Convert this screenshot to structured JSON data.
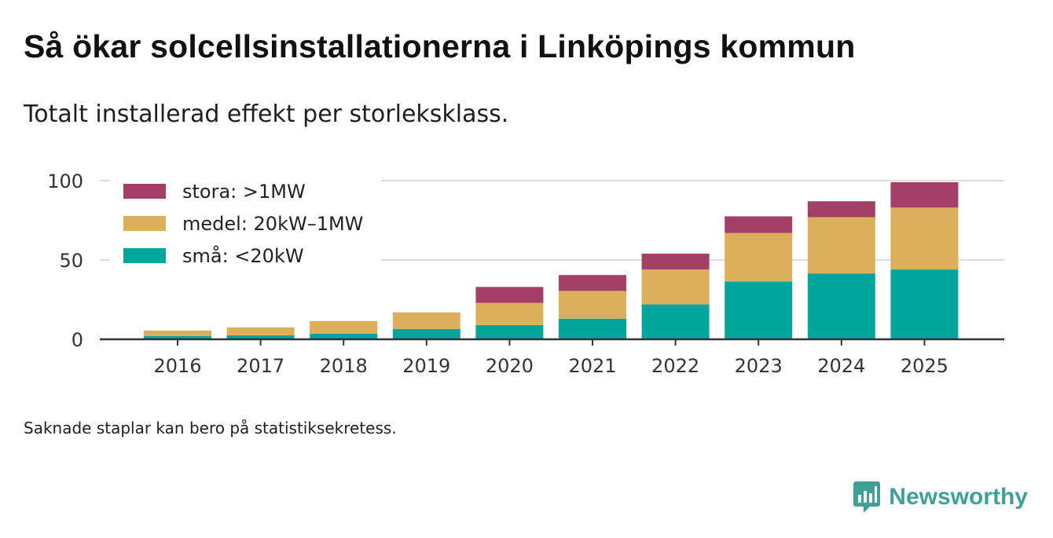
{
  "chart_data": {
    "type": "bar",
    "stacked": true,
    "title": "Så ökar solcellsinstallationerna i Linköpings kommun",
    "subtitle": "Totalt installerad effekt per storleksklass.",
    "categories": [
      "2016",
      "2017",
      "2018",
      "2019",
      "2020",
      "2021",
      "2022",
      "2023",
      "2024",
      "2025"
    ],
    "series": [
      {
        "name": "små: <20kW",
        "color": "#00a69c",
        "values": [
          2,
          2.5,
          3.5,
          6.5,
          9,
          13,
          22,
          36.5,
          41.5,
          44
        ]
      },
      {
        "name": "medel: 20kW–1MW",
        "color": "#dcaf5a",
        "values": [
          3.5,
          5,
          8,
          10.5,
          14,
          17.5,
          22,
          30.5,
          35.5,
          39
        ]
      },
      {
        "name": "stora: >1MW",
        "color": "#a43f68",
        "values": [
          0,
          0,
          0,
          0,
          10,
          10,
          10,
          10.5,
          10,
          16
        ]
      }
    ],
    "legend_order": [
      "stora: >1MW",
      "medel: 20kW–1MW",
      "små: <20kW"
    ],
    "legend_position": "top-left",
    "yticks": [
      0,
      50,
      100
    ],
    "ylim": [
      0,
      105
    ],
    "grid": true,
    "xlabel": "",
    "ylabel": ""
  },
  "footnote": "Saknade staplar kan bero på statistiksekretess.",
  "brand": {
    "name": "Newsworthy",
    "icon": "newsworthy-logo-icon",
    "color": "#41a095"
  }
}
